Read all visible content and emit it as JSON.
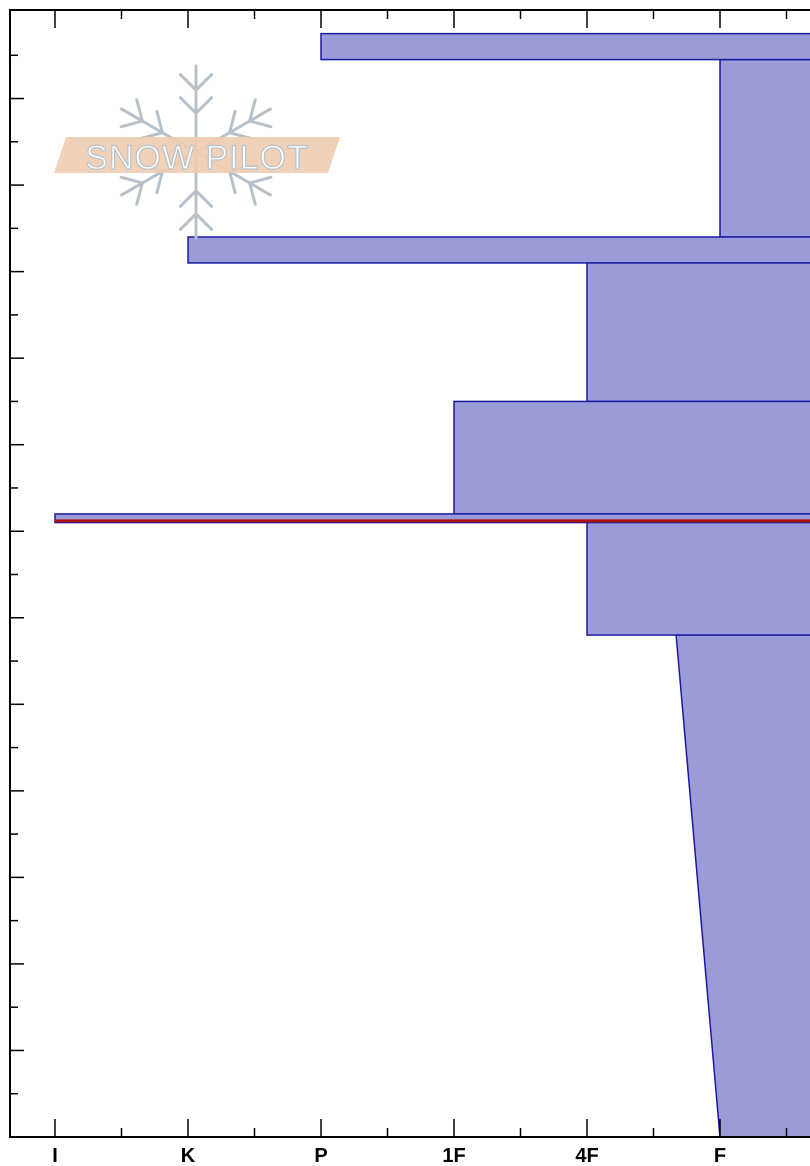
{
  "logo": {
    "text": "SNOW PILOT",
    "icon": "snowflake-icon",
    "band_color": "#f0cdb0",
    "flake_color": "#b7c1c9"
  },
  "chart_data": {
    "type": "area",
    "xlabel": "",
    "ylabel": "",
    "x_ticks": [
      "I",
      "K",
      "P",
      "1F",
      "4F",
      "F"
    ],
    "x_range": [
      0,
      5.7
    ],
    "y_range": [
      0,
      13
    ],
    "y_minor_ticks": 26,
    "fill_color": "#9b9bd8",
    "edge_color": "#1a1aa0",
    "weak_layer_color": "#b01010",
    "layers": [
      {
        "top": 12.75,
        "bottom": 12.45,
        "hardness": 5.7
      },
      {
        "top": 12.45,
        "bottom": 10.4,
        "hardness": 5.0
      },
      {
        "top": 12.75,
        "bottom": 12.45,
        "hardness_from": 2.0,
        "hardness_to": 5.7,
        "kind": "thin"
      },
      {
        "top": 10.4,
        "bottom": 10.1,
        "hardness": 1.0,
        "kind": "thin"
      },
      {
        "top": 10.1,
        "bottom": 8.5,
        "hardness": 4.0
      },
      {
        "top": 8.5,
        "bottom": 7.2,
        "hardness": 3.0
      },
      {
        "top": 7.2,
        "bottom": 7.1,
        "hardness": 0.0,
        "kind": "thin"
      },
      {
        "top": 7.1,
        "bottom": 5.8,
        "hardness": 4.0
      },
      {
        "top": 5.8,
        "bottom": 0.0,
        "hardness_top": 4.67,
        "hardness_bottom": 5.0,
        "kind": "sloped"
      }
    ],
    "weak_layer_y": 7.12
  }
}
